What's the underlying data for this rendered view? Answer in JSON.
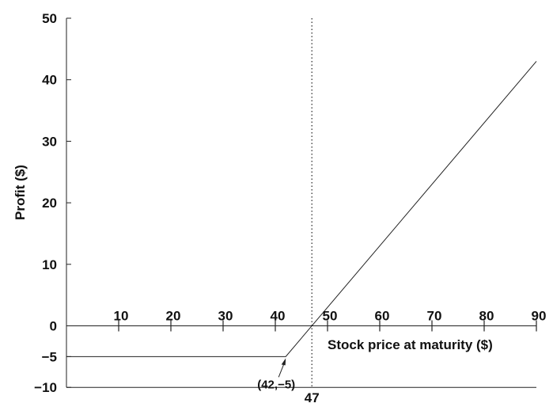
{
  "chart_data": {
    "type": "line",
    "title": "",
    "xlabel": "Stock price at maturity ($)",
    "ylabel": "Profit ($)",
    "xlim": [
      0,
      90
    ],
    "ylim": [
      -10,
      50
    ],
    "x_ticks": [
      10,
      20,
      30,
      40,
      50,
      60,
      70,
      80,
      90
    ],
    "y_ticks": [
      50,
      40,
      30,
      20,
      10,
      0,
      -5,
      -10
    ],
    "y_tick_labels": [
      "50",
      "40",
      "30",
      "20",
      "10",
      "0",
      "−5",
      "−10"
    ],
    "grid": false,
    "series": [
      {
        "x": [
          0,
          42,
          90
        ],
        "y": [
          -5,
          -5,
          43
        ]
      }
    ],
    "reference_line": {
      "x": 47,
      "label": "47",
      "style": "dotted"
    },
    "annotation": {
      "x": 42,
      "y": -5,
      "label": "(42,−5)"
    }
  }
}
